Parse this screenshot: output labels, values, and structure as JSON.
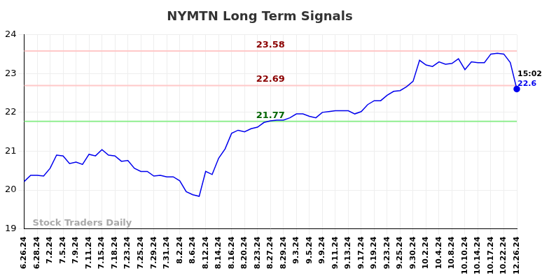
{
  "chart_data": {
    "type": "line",
    "title": "NYMTN Long Term Signals",
    "categories": [
      "6.26.24",
      null,
      "6.28.24",
      null,
      "7.2.24",
      null,
      "7.5.24",
      null,
      "7.9.24",
      null,
      "7.11.24",
      null,
      "7.15.24",
      null,
      "7.18.24",
      null,
      "7.23.24",
      null,
      "7.25.24",
      null,
      "7.29.24",
      null,
      "7.31.24",
      null,
      "8.2.24",
      null,
      "8.6.24",
      null,
      "8.12.24",
      null,
      "8.14.24",
      null,
      "8.16.24",
      null,
      "8.20.24",
      null,
      "8.23.24",
      null,
      "8.27.24",
      null,
      "8.29.24",
      null,
      "9.3.24",
      null,
      "9.5.24",
      null,
      "9.9.24",
      null,
      "9.11.24",
      null,
      "9.13.24",
      null,
      "9.17.24",
      null,
      "9.19.24",
      null,
      "9.23.24",
      null,
      "9.25.24",
      null,
      "9.30.24",
      null,
      "10.2.24",
      null,
      "10.4.24",
      null,
      "10.8.24",
      null,
      "10.10.24",
      null,
      "10.14.24",
      null,
      "10.17.24",
      null,
      "10.22.24",
      null,
      "12.26.24"
    ],
    "values": [
      20.22,
      20.38,
      20.38,
      20.36,
      20.56,
      20.9,
      20.88,
      20.68,
      20.72,
      20.66,
      20.92,
      20.88,
      21.04,
      20.9,
      20.88,
      20.74,
      20.76,
      20.56,
      20.48,
      20.48,
      20.36,
      20.38,
      20.34,
      20.34,
      20.24,
      19.96,
      19.88,
      19.84,
      20.48,
      20.4,
      20.82,
      21.06,
      21.46,
      21.54,
      21.5,
      21.58,
      21.62,
      21.74,
      21.78,
      21.8,
      21.8,
      21.86,
      21.96,
      21.96,
      21.9,
      21.86,
      22.0,
      22.02,
      22.04,
      22.04,
      22.04,
      21.96,
      22.02,
      22.2,
      22.3,
      22.3,
      22.44,
      22.54,
      22.56,
      22.66,
      22.8,
      23.34,
      23.22,
      23.18,
      23.3,
      23.24,
      23.26,
      23.38,
      23.1,
      23.3,
      23.28,
      23.28,
      23.5,
      23.52,
      23.5,
      23.28,
      22.6
    ],
    "color": "#0000ee",
    "ylim": [
      19,
      24
    ],
    "yticks": [
      19,
      20,
      21,
      22,
      23,
      24
    ],
    "grid": true,
    "reference_lines": [
      {
        "value": 23.58,
        "label": "23.58",
        "color": "#ffc8c8",
        "label_color": "#8b0000"
      },
      {
        "value": 22.69,
        "label": "22.69",
        "color": "#ffc8c8",
        "label_color": "#8b0000"
      },
      {
        "value": 21.77,
        "label": "21.77",
        "color": "#90ee90",
        "label_color": "#006400"
      }
    ],
    "last_point": {
      "time": "15:02",
      "value_label": "22.6"
    },
    "watermark": "Stock Traders Daily"
  }
}
